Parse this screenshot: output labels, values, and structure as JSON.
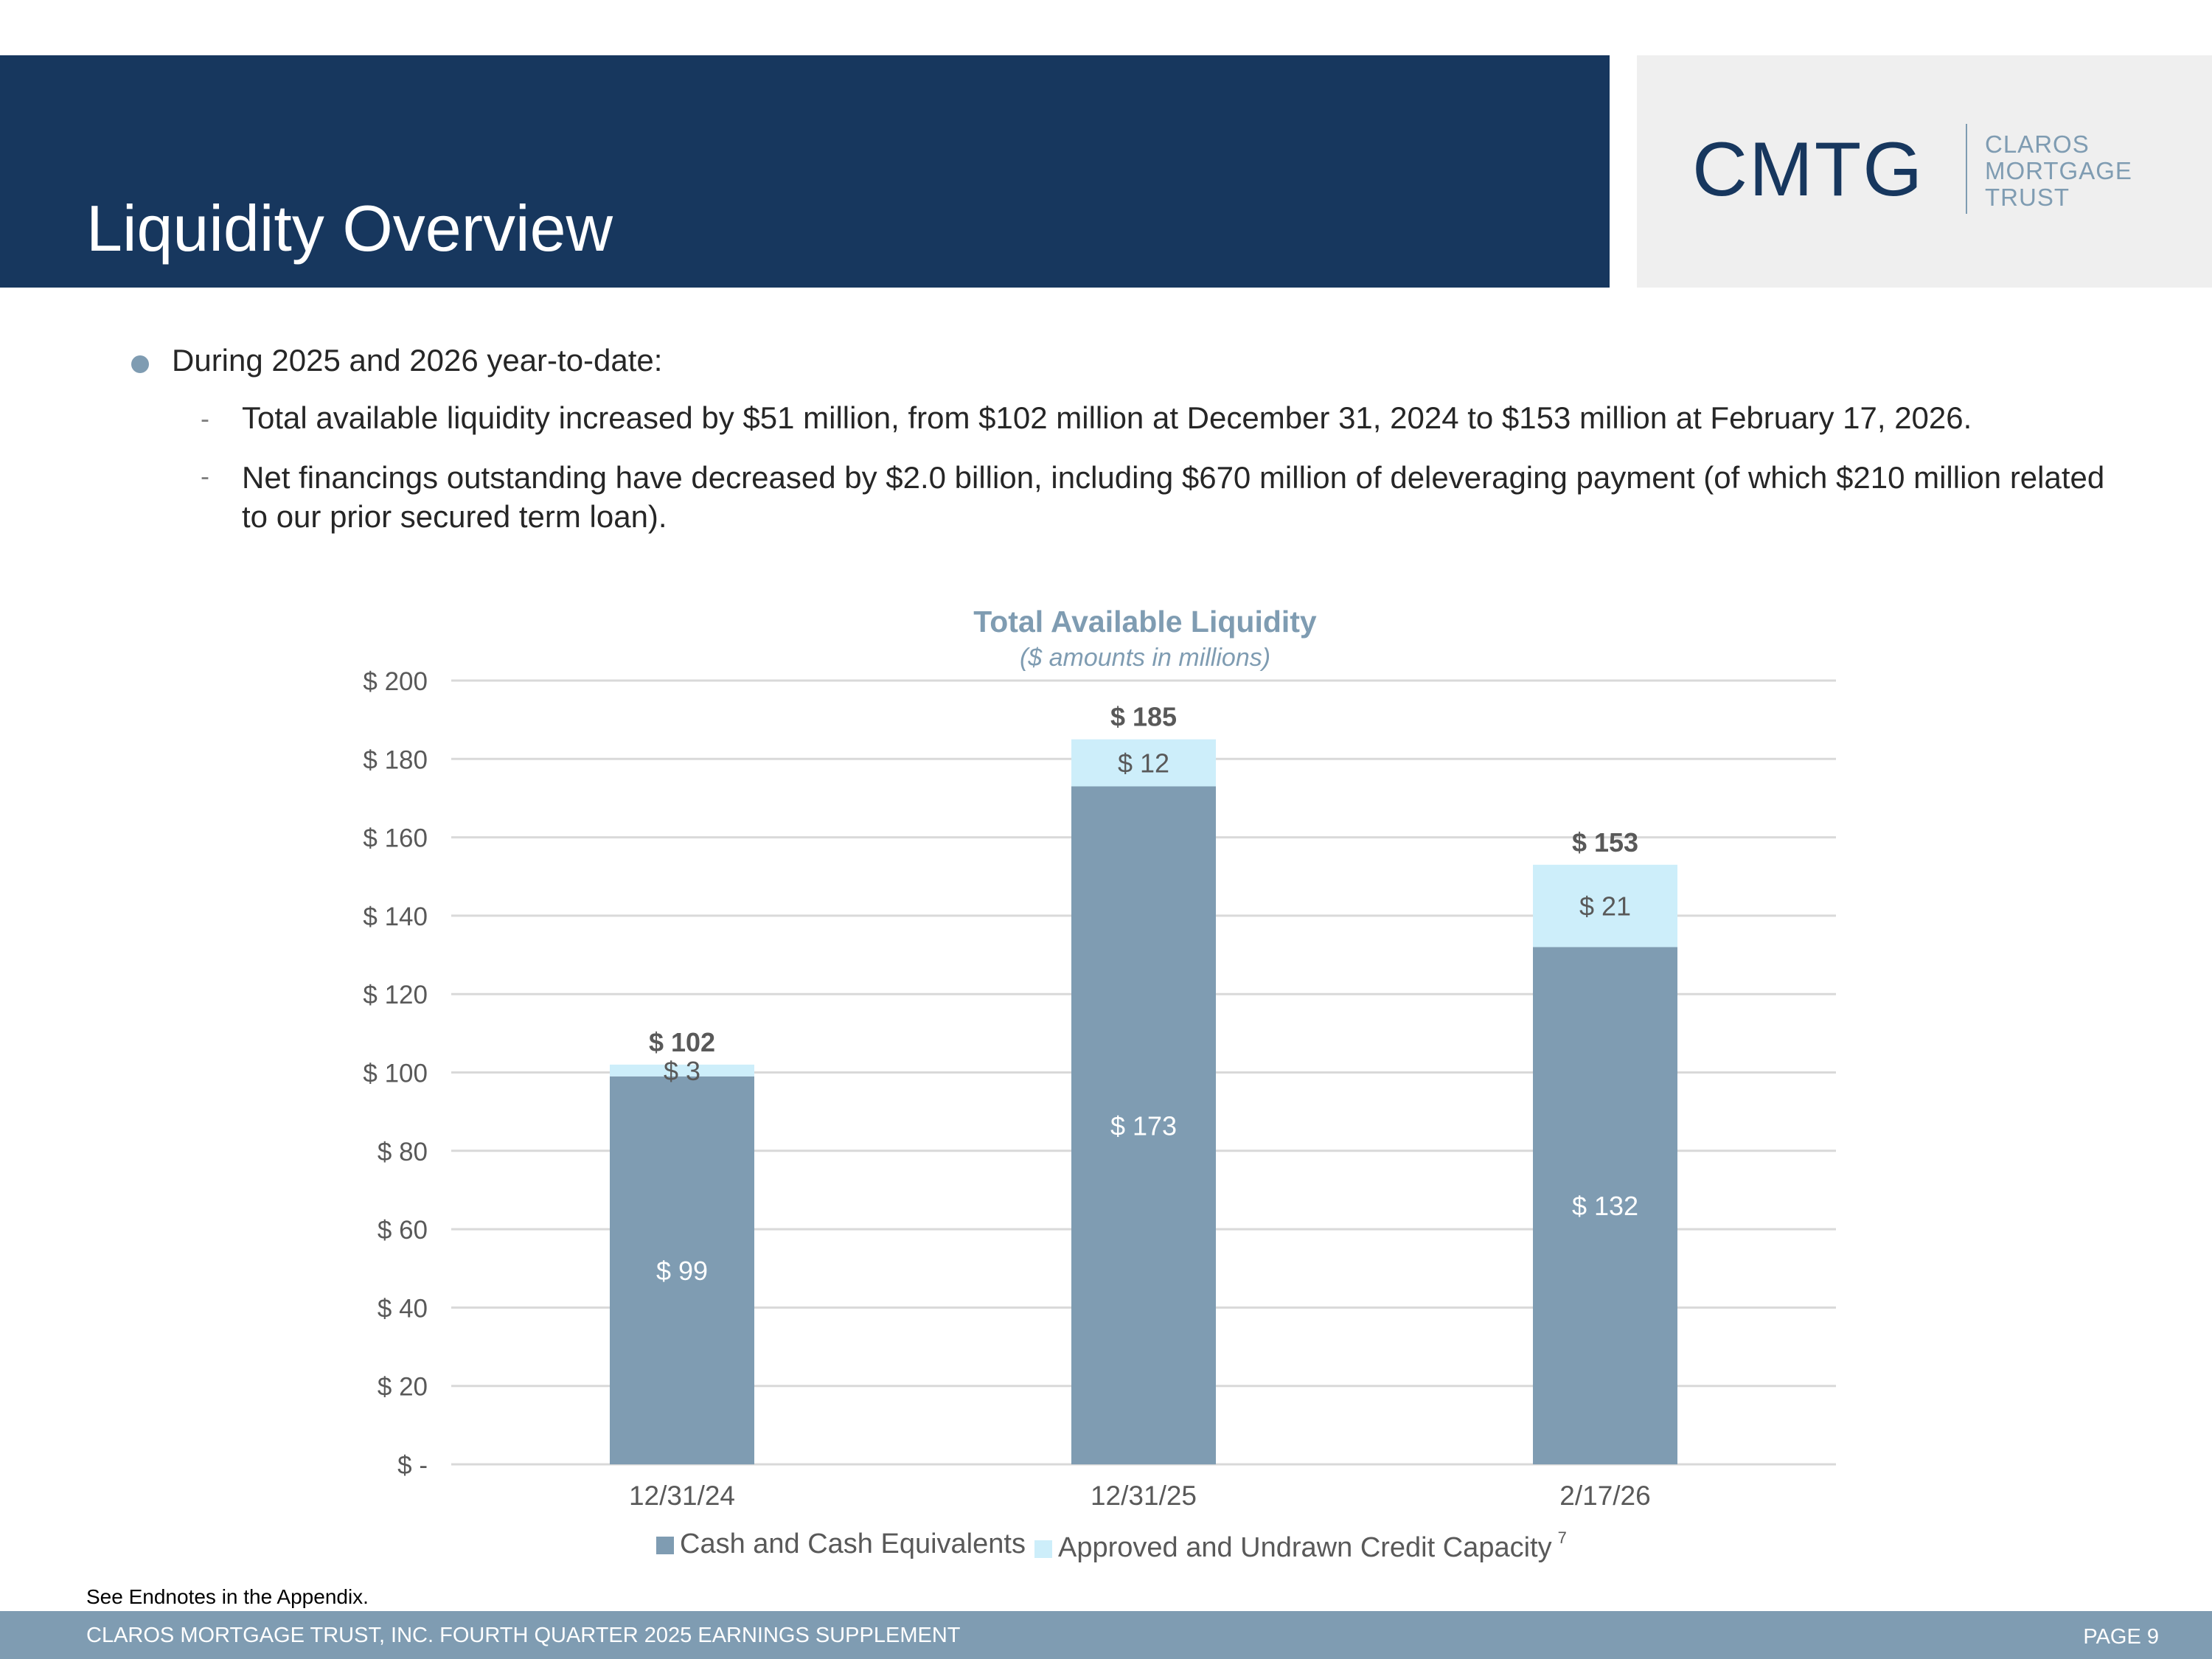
{
  "slide": {
    "title": "Liquidity Overview",
    "logo": {
      "mark": "CMTG",
      "words": [
        "CLAROS",
        "MORTGAGE",
        "TRUST"
      ]
    },
    "bullets": {
      "main": "During 2025 and 2026 year-to-date:",
      "sub1": "Total available liquidity increased by $51 million, from $102 million at December 31, 2024 to $153 million at February 17, 2026.",
      "sub2": "Net financings outstanding have decreased by $2.0 billion, including $670 million of deleveraging payment (of which $210 million related to our prior secured term loan).",
      "dash": "-"
    },
    "endnote": "See Endnotes in the Appendix.",
    "footer": {
      "left": "CLAROS MORTGAGE TRUST, INC. FOURTH QUARTER 2025 EARNINGS SUPPLEMENT",
      "right": "PAGE 9"
    },
    "colors": {
      "band": "#17375e",
      "cash": "#7f9cb2",
      "credit": "#cdeefa"
    }
  },
  "chart_data": {
    "type": "bar",
    "stacked": true,
    "title": "Total Available Liquidity",
    "subtitle": "($ amounts in millions)",
    "xlabel": "",
    "ylabel": "",
    "categories": [
      "12/31/24",
      "12/31/25",
      "2/17/26"
    ],
    "series": [
      {
        "name": "Cash and Cash Equivalents",
        "values": [
          99,
          173,
          132
        ],
        "labels": [
          "$ 99",
          "$ 173",
          "$ 132"
        ],
        "color": "#7f9cb2"
      },
      {
        "name": "Approved and Undrawn Credit Capacity",
        "values": [
          3,
          12,
          21
        ],
        "labels": [
          "$ 3",
          "$ 12",
          "$ 21"
        ],
        "color": "#cdeefa"
      }
    ],
    "legend_superscript": "7",
    "totals": [
      102,
      185,
      153
    ],
    "total_labels": [
      "$ 102",
      "$ 185",
      "$ 153"
    ],
    "ylim": [
      0,
      200
    ],
    "yticks": [
      0,
      20,
      40,
      60,
      80,
      100,
      120,
      140,
      160,
      180,
      200
    ],
    "ytick_labels": [
      "$ -",
      "$ 20",
      "$ 40",
      "$ 60",
      "$ 80",
      "$ 100",
      "$ 120",
      "$ 140",
      "$ 160",
      "$ 180",
      "$ 200"
    ],
    "grid": true,
    "legend_position": "bottom"
  }
}
